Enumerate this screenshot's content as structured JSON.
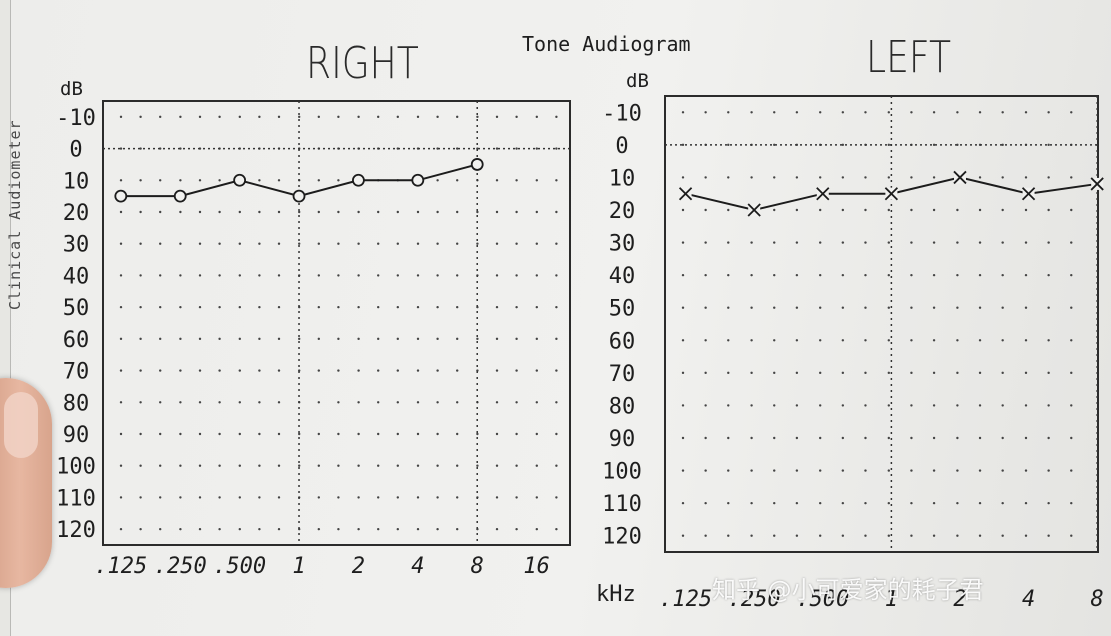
{
  "form": {
    "title": "Tone Audiogram",
    "side_label": "Clinical Audiometer"
  },
  "watermark": "知乎 @小可爱家的耗子君",
  "chart_data": [
    {
      "type": "line",
      "title": "RIGHT",
      "ylabel": "dB",
      "xlabel": "",
      "x": [
        0.125,
        0.25,
        0.5,
        1,
        2,
        4,
        8,
        16
      ],
      "x_tick_labels": [
        ".125",
        ".250",
        ".500",
        "1",
        "2",
        "4",
        "8",
        "16"
      ],
      "y_tick_labels": [
        "-10",
        "0",
        "10",
        "20",
        "30",
        "40",
        "50",
        "60",
        "70",
        "80",
        "90",
        "100",
        "110",
        "120"
      ],
      "ylim": [
        -15,
        125
      ],
      "y_inverted": true,
      "grid": "dotted",
      "series": [
        {
          "marker": "o",
          "x": [
            0.125,
            0.25,
            0.5,
            1,
            2,
            4,
            8
          ],
          "y": [
            15,
            15,
            10,
            15,
            10,
            10,
            5
          ]
        }
      ]
    },
    {
      "type": "line",
      "title": "LEFT",
      "ylabel": "dB",
      "xlabel": "kHz",
      "x": [
        0.125,
        0.25,
        0.5,
        1,
        2,
        4,
        8
      ],
      "x_tick_labels": [
        ".125",
        ".250",
        ".500",
        "1",
        "2",
        "4",
        "8"
      ],
      "y_tick_labels": [
        "-10",
        "0",
        "10",
        "20",
        "30",
        "40",
        "50",
        "60",
        "70",
        "80",
        "90",
        "100",
        "110",
        "120"
      ],
      "ylim": [
        -15,
        125
      ],
      "y_inverted": true,
      "grid": "dotted",
      "series": [
        {
          "marker": "x",
          "x": [
            0.125,
            0.25,
            0.5,
            1,
            2,
            4,
            8
          ],
          "y": [
            15,
            20,
            15,
            15,
            10,
            15,
            12
          ]
        }
      ]
    }
  ]
}
